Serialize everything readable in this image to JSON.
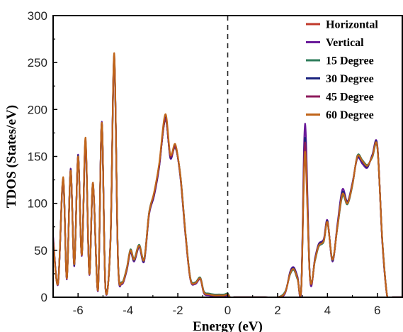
{
  "chart_data": {
    "type": "line",
    "xlabel": "Energy (eV)",
    "ylabel": "TDOS (States/eV)",
    "xlim": [
      -7,
      7
    ],
    "ylim": [
      0,
      300
    ],
    "xticks": [
      -6,
      -4,
      -2,
      0,
      2,
      4,
      6
    ],
    "yticks": [
      0,
      50,
      100,
      150,
      200,
      250,
      300
    ],
    "fermi_line_x": 0,
    "legend_position": "top-right",
    "x": [
      -7.0,
      -6.8,
      -6.6,
      -6.45,
      -6.3,
      -6.15,
      -6.0,
      -5.85,
      -5.7,
      -5.55,
      -5.4,
      -5.2,
      -5.05,
      -4.9,
      -4.7,
      -4.55,
      -4.4,
      -4.25,
      -4.05,
      -3.9,
      -3.75,
      -3.55,
      -3.35,
      -3.15,
      -2.95,
      -2.75,
      -2.5,
      -2.3,
      -2.1,
      -1.9,
      -1.7,
      -1.5,
      -1.3,
      -1.1,
      -0.95,
      -0.75,
      -0.55,
      -0.35,
      -0.15,
      0.0,
      0.1,
      0.25,
      0.4,
      0.6,
      1.0,
      1.5,
      2.0,
      2.3,
      2.5,
      2.65,
      2.8,
      2.95,
      3.1,
      3.3,
      3.5,
      3.65,
      3.85,
      4.0,
      4.2,
      4.4,
      4.6,
      4.8,
      5.0,
      5.2,
      5.4,
      5.6,
      5.8,
      6.0,
      6.2,
      6.4,
      6.6,
      6.8,
      7.0
    ],
    "series": [
      {
        "name": "Horizontal",
        "color": "#c0392b",
        "values": [
          60,
          15,
          125,
          20,
          135,
          35,
          150,
          45,
          165,
          25,
          120,
          8,
          185,
          10,
          60,
          255,
          40,
          15,
          30,
          50,
          40,
          55,
          40,
          90,
          110,
          140,
          190,
          150,
          160,
          130,
          70,
          20,
          15,
          20,
          5,
          3,
          2,
          2,
          2,
          3,
          0,
          0,
          0,
          0,
          0,
          0,
          0,
          5,
          25,
          30,
          20,
          10,
          150,
          20,
          40,
          55,
          60,
          80,
          40,
          75,
          110,
          100,
          120,
          150,
          145,
          140,
          150,
          160,
          60,
          0,
          0,
          0,
          0
        ]
      },
      {
        "name": "Vertical",
        "color": "#6a1b9a",
        "values": [
          65,
          14,
          127,
          19,
          137,
          33,
          152,
          44,
          168,
          24,
          122,
          7,
          187,
          9,
          62,
          258,
          38,
          14,
          28,
          48,
          38,
          53,
          38,
          88,
          108,
          138,
          192,
          148,
          162,
          128,
          68,
          19,
          14,
          19,
          4,
          2,
          1,
          1,
          1,
          2,
          0,
          0,
          0,
          0,
          0,
          0,
          0,
          4,
          27,
          32,
          22,
          9,
          185,
          19,
          42,
          57,
          62,
          82,
          38,
          78,
          115,
          102,
          122,
          148,
          142,
          138,
          152,
          162,
          58,
          0,
          0,
          0,
          0
        ]
      },
      {
        "name": "15 Degree",
        "color": "#2e7d5b",
        "values": [
          62,
          16,
          124,
          21,
          134,
          36,
          149,
          46,
          164,
          26,
          119,
          9,
          184,
          11,
          59,
          254,
          41,
          16,
          31,
          51,
          41,
          56,
          41,
          91,
          111,
          141,
          189,
          151,
          159,
          131,
          71,
          21,
          16,
          21,
          6,
          4,
          3,
          3,
          3,
          4,
          0,
          0,
          0,
          0,
          0,
          0,
          0,
          6,
          24,
          29,
          19,
          11,
          160,
          21,
          39,
          54,
          59,
          79,
          41,
          74,
          108,
          99,
          119,
          151,
          146,
          141,
          149,
          159,
          61,
          0,
          0,
          0,
          0
        ]
      },
      {
        "name": "30 Degree",
        "color": "#1a237e",
        "values": [
          61,
          15,
          126,
          20,
          136,
          34,
          151,
          45,
          166,
          25,
          121,
          8,
          186,
          10,
          61,
          256,
          39,
          15,
          29,
          49,
          39,
          54,
          39,
          89,
          109,
          139,
          191,
          149,
          161,
          129,
          69,
          20,
          15,
          20,
          5,
          3,
          2,
          2,
          2,
          3,
          0,
          0,
          0,
          0,
          0,
          0,
          0,
          5,
          26,
          31,
          21,
          10,
          170,
          20,
          41,
          56,
          61,
          81,
          39,
          76,
          112,
          101,
          121,
          149,
          144,
          139,
          151,
          161,
          59,
          0,
          0,
          0,
          0
        ]
      },
      {
        "name": "45 Degree",
        "color": "#8e1b5c",
        "values": [
          63,
          15,
          125,
          20,
          135,
          35,
          150,
          45,
          165,
          25,
          120,
          8,
          185,
          10,
          60,
          255,
          40,
          15,
          30,
          50,
          40,
          55,
          40,
          90,
          110,
          140,
          190,
          150,
          160,
          130,
          70,
          20,
          15,
          20,
          5,
          3,
          2,
          2,
          2,
          3,
          0,
          0,
          0,
          0,
          0,
          0,
          0,
          5,
          25,
          30,
          20,
          10,
          165,
          20,
          40,
          55,
          60,
          80,
          40,
          75,
          110,
          100,
          120,
          150,
          145,
          140,
          150,
          160,
          60,
          0,
          0,
          0,
          0
        ]
      },
      {
        "name": "60 Degree",
        "color": "#c0651a",
        "values": [
          60,
          15,
          128,
          20,
          135,
          35,
          150,
          45,
          170,
          25,
          122,
          8,
          186,
          10,
          60,
          260,
          40,
          15,
          30,
          50,
          40,
          55,
          40,
          90,
          112,
          142,
          195,
          152,
          163,
          130,
          70,
          20,
          15,
          20,
          5,
          3,
          2,
          2,
          2,
          3,
          0,
          0,
          0,
          0,
          0,
          0,
          0,
          5,
          25,
          30,
          20,
          10,
          155,
          20,
          40,
          55,
          60,
          80,
          40,
          75,
          110,
          100,
          120,
          150,
          145,
          140,
          150,
          160,
          60,
          0,
          0,
          0,
          0
        ]
      }
    ]
  }
}
